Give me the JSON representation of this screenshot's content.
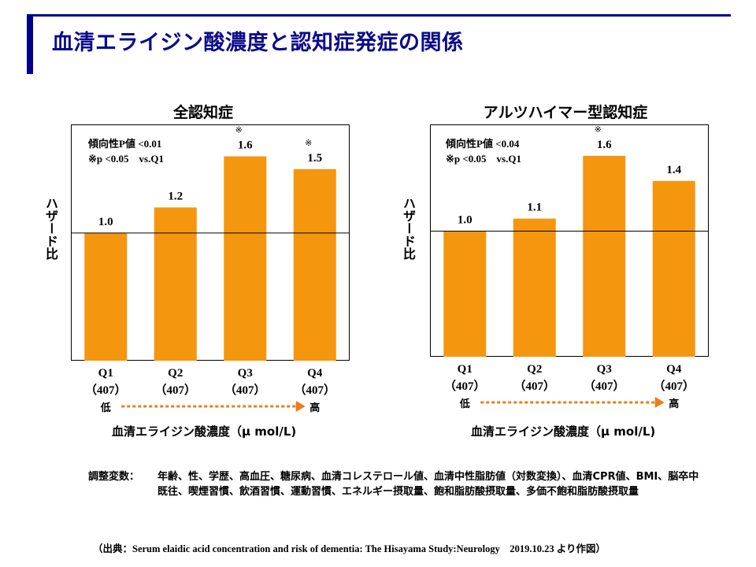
{
  "title": "血清エライジン酸濃度と認知症発症の関係",
  "y_axis_label": "ハザード比",
  "x_axis_label": "血清エライジン酸濃度（μ mol/L)",
  "low_label": "低",
  "high_label": "高",
  "colors": {
    "bar": "#f5960f",
    "arrow": "#ee7c1a",
    "title": "#0b0b8c",
    "accent_bar": "#00008b"
  },
  "chart_data": [
    {
      "type": "bar",
      "title": "全認知症",
      "categories": [
        "Q1",
        "Q2",
        "Q3",
        "Q4"
      ],
      "category_counts": [
        "（407）",
        "（407）",
        "（407）",
        "（407）"
      ],
      "values": [
        1.0,
        1.2,
        1.6,
        1.5
      ],
      "value_labels": [
        "1.0",
        "1.2",
        "1.6",
        "1.5"
      ],
      "significance_marks": [
        "",
        "",
        "※",
        "※"
      ],
      "reference_line": 1.0,
      "ylim": [
        0,
        1.85
      ],
      "notes": [
        "傾向性P値 <0.01",
        "※p <0.05　vs.Q1"
      ]
    },
    {
      "type": "bar",
      "title": "アルツハイマー型認知症",
      "categories": [
        "Q1",
        "Q2",
        "Q3",
        "Q4"
      ],
      "category_counts": [
        "（407）",
        "（407）",
        "（407）",
        "（407）"
      ],
      "values": [
        1.0,
        1.1,
        1.6,
        1.4
      ],
      "value_labels": [
        "1.0",
        "1.1",
        "1.6",
        "1.4"
      ],
      "significance_marks": [
        "",
        "",
        "※",
        ""
      ],
      "reference_line": 1.0,
      "ylim": [
        0,
        1.85
      ],
      "notes": [
        "傾向性P値 <0.04",
        "※p <0.05　vs.Q1"
      ]
    }
  ],
  "adjustment": {
    "label": "調整変数：",
    "text": "年齢、性、学歴、高血圧、糖尿病、血清コレステロール値、血清中性脂肪値（対数変換）、血清CPR値、BMI、脳卒中既往、喫煙習慣、飲酒習慣、運動習慣、エネルギー摂取量、飽和脂肪酸摂取量、多価不飽和脂肪酸摂取量"
  },
  "source": "（出典：Serum elaidic acid concentration  and risk of dementia:  The Hisayama Study:Neurology　2019.10.23 より作図）"
}
